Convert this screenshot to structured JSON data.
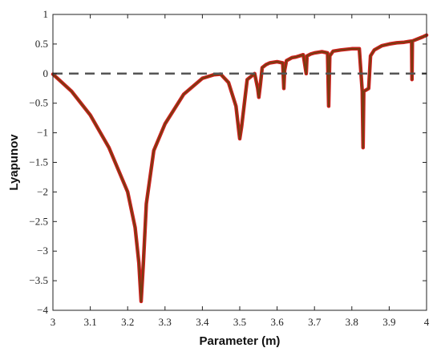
{
  "chart_data": {
    "type": "line",
    "title": "",
    "xlabel": "Parameter (m)",
    "ylabel": "Lyapunov",
    "xlim": [
      3,
      4
    ],
    "ylim": [
      -4,
      1
    ],
    "xticks": [
      "3",
      "3.1",
      "3.2",
      "3.3",
      "3.4",
      "3.5",
      "3.6",
      "3.7",
      "3.8",
      "3.9",
      "4"
    ],
    "yticks": [
      "1",
      "0.5",
      "0",
      "-0.5",
      "-1",
      "-1.5",
      "-2",
      "-2.5",
      "-3",
      "-3.5",
      "-4"
    ],
    "grid": false,
    "legend": "none",
    "reference_line": {
      "y": 0,
      "style": "dashed",
      "color": "#555555"
    },
    "series": [
      {
        "color": "#d21f1f",
        "style": "solid",
        "x": [
          3.0,
          3.05,
          3.1,
          3.15,
          3.2,
          3.22,
          3.23,
          3.236,
          3.242,
          3.25,
          3.27,
          3.3,
          3.35,
          3.4,
          3.43,
          3.449,
          3.47,
          3.49,
          3.498,
          3.5,
          3.505,
          3.52,
          3.54,
          3.548,
          3.551,
          3.555,
          3.56,
          3.57,
          3.58,
          3.6,
          3.615,
          3.618,
          3.62,
          3.625,
          3.64,
          3.65,
          3.66,
          3.67,
          3.678,
          3.68,
          3.69,
          3.7,
          3.72,
          3.735,
          3.738,
          3.741,
          3.75,
          3.77,
          3.8,
          3.82,
          3.828,
          3.83,
          3.832,
          3.845,
          3.85,
          3.86,
          3.88,
          3.9,
          3.92,
          3.94,
          3.96,
          3.961,
          3.962,
          3.97,
          3.99,
          4.0
        ],
        "y": [
          -0.01,
          -0.3,
          -0.7,
          -1.25,
          -2.0,
          -2.6,
          -3.2,
          -3.85,
          -3.2,
          -2.2,
          -1.3,
          -0.85,
          -0.35,
          -0.08,
          -0.02,
          -0.01,
          -0.15,
          -0.55,
          -1.0,
          -1.1,
          -0.9,
          -0.1,
          0.0,
          -0.25,
          -0.4,
          -0.2,
          0.1,
          0.15,
          0.18,
          0.2,
          0.18,
          -0.25,
          0.05,
          0.22,
          0.27,
          0.28,
          0.3,
          0.32,
          0.0,
          0.3,
          0.33,
          0.35,
          0.37,
          0.35,
          -0.55,
          0.3,
          0.38,
          0.4,
          0.42,
          0.42,
          -0.3,
          -1.25,
          -0.3,
          -0.25,
          0.3,
          0.4,
          0.47,
          0.5,
          0.52,
          0.53,
          0.55,
          -0.1,
          0.55,
          0.57,
          0.62,
          0.65
        ]
      },
      {
        "color": "#7a3b10",
        "style": "solid",
        "x": [
          3.0,
          3.05,
          3.1,
          3.15,
          3.2,
          3.22,
          3.23,
          3.236,
          3.242,
          3.25,
          3.27,
          3.3,
          3.35,
          3.4,
          3.43,
          3.449,
          3.47,
          3.49,
          3.498,
          3.5,
          3.505,
          3.52,
          3.54,
          3.548,
          3.551,
          3.555,
          3.56,
          3.57,
          3.58,
          3.6,
          3.615,
          3.618,
          3.62,
          3.625,
          3.64,
          3.65,
          3.66,
          3.67,
          3.678,
          3.68,
          3.69,
          3.7,
          3.72,
          3.735,
          3.738,
          3.741,
          3.75,
          3.77,
          3.8,
          3.82,
          3.828,
          3.83,
          3.832,
          3.845,
          3.85,
          3.86,
          3.88,
          3.9,
          3.92,
          3.94,
          3.96,
          3.961,
          3.962,
          3.97,
          3.99,
          4.0
        ],
        "y": [
          -0.01,
          -0.3,
          -0.7,
          -1.25,
          -2.0,
          -2.6,
          -3.2,
          -3.85,
          -3.2,
          -2.2,
          -1.3,
          -0.85,
          -0.35,
          -0.08,
          -0.02,
          -0.01,
          -0.15,
          -0.55,
          -1.0,
          -1.1,
          -0.9,
          -0.1,
          0.0,
          -0.25,
          -0.4,
          -0.2,
          0.1,
          0.15,
          0.18,
          0.2,
          0.18,
          -0.25,
          0.05,
          0.22,
          0.27,
          0.28,
          0.3,
          0.32,
          0.0,
          0.3,
          0.33,
          0.35,
          0.37,
          0.35,
          -0.55,
          0.3,
          0.38,
          0.4,
          0.42,
          0.42,
          -0.3,
          -1.25,
          -0.3,
          -0.25,
          0.3,
          0.4,
          0.47,
          0.5,
          0.52,
          0.53,
          0.55,
          -0.1,
          0.55,
          0.57,
          0.62,
          0.65
        ]
      }
    ]
  }
}
